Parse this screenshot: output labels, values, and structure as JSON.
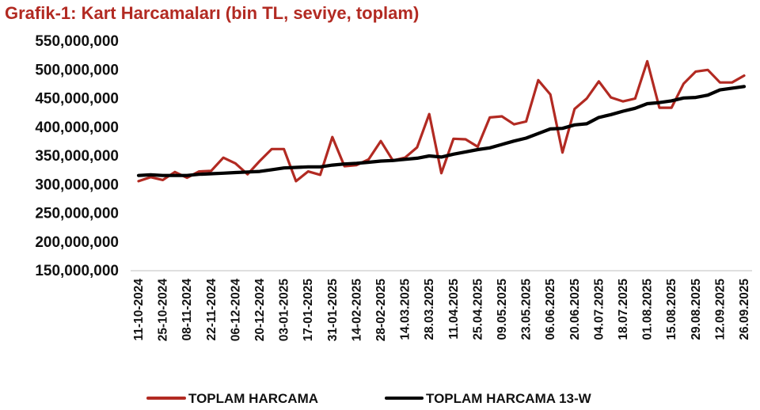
{
  "chart_data": {
    "type": "line",
    "title": "Grafik-1: Kart Harcamaları (bin TL, seviye, toplam)",
    "xlabel": "",
    "ylabel": "",
    "ylim": [
      150000000,
      550000000
    ],
    "y_ticks": [
      150000000,
      200000000,
      250000000,
      300000000,
      350000000,
      400000000,
      450000000,
      500000000,
      550000000
    ],
    "y_tick_labels": [
      "150,000,000",
      "200,000,000",
      "250,000,000",
      "300,000,000",
      "350,000,000",
      "400,000,000",
      "450,000,000",
      "500,000,000",
      "550,000,000"
    ],
    "x_tick_labels": [
      "11-10-2024",
      "25-10-2024",
      "08-11-2024",
      "22-11-2024",
      "06-12-2024",
      "20-12-2024",
      "03-01-2025",
      "17-01-2025",
      "31-01-2025",
      "14-02-2025",
      "28-02-2025",
      "14.03.2025",
      "28.03.2025",
      "11.04.2025",
      "25.04.2025",
      "09.05.2025",
      "23.05.2025",
      "06.06.2025",
      "20.06.2025",
      "04.07.2025",
      "18.07.2025",
      "01.08.2025",
      "15.08.2025",
      "29.08.2025",
      "12.09.2025",
      "26.09.2025"
    ],
    "grid": false,
    "legend": "bottom",
    "series": [
      {
        "name": "TOPLAM HARCAMA",
        "color": "#b22a22",
        "values": [
          306000000,
          313000000,
          308000000,
          322000000,
          312000000,
          323000000,
          324000000,
          347000000,
          337000000,
          318000000,
          341000000,
          362000000,
          362000000,
          306000000,
          323000000,
          317000000,
          383000000,
          332000000,
          334000000,
          344000000,
          376000000,
          342000000,
          347000000,
          365000000,
          423000000,
          320000000,
          380000000,
          379000000,
          366000000,
          417000000,
          419000000,
          405000000,
          410000000,
          482000000,
          457000000,
          356000000,
          432000000,
          450000000,
          480000000,
          452000000,
          445000000,
          450000000,
          515000000,
          434000000,
          434000000,
          476000000,
          497000000,
          500000000,
          478000000,
          478000000,
          490000000
        ]
      },
      {
        "name": "TOPLAM HARCAMA 13-W",
        "color": "#000000",
        "values": [
          316000000,
          317000000,
          316000000,
          316000000,
          316000000,
          318000000,
          319000000,
          320000000,
          321000000,
          322000000,
          323000000,
          326000000,
          329000000,
          330000000,
          331000000,
          331000000,
          334000000,
          336000000,
          337000000,
          339000000,
          341000000,
          342000000,
          344000000,
          346000000,
          350000000,
          348000000,
          353000000,
          357000000,
          361000000,
          364000000,
          370000000,
          376000000,
          381000000,
          389000000,
          397000000,
          398000000,
          404000000,
          406000000,
          417000000,
          422000000,
          428000000,
          433000000,
          441000000,
          443000000,
          446000000,
          451000000,
          452000000,
          456000000,
          465000000,
          468000000,
          471000000
        ]
      }
    ]
  }
}
